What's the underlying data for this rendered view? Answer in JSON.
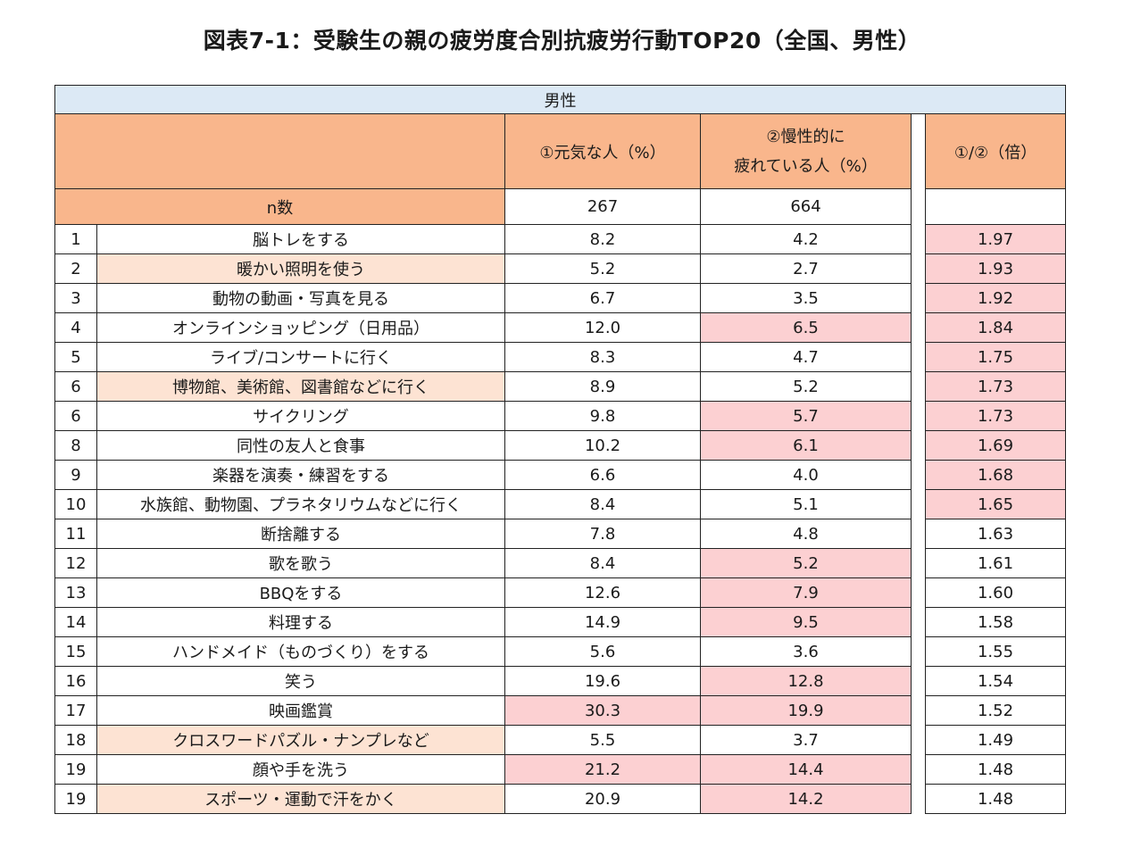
{
  "title": "図表7-1：受験生の親の疲労度合別抗疲労行動TOP20（全国、男性）",
  "table": {
    "band_label": "男性",
    "headers": {
      "col1": "①元気な人（%）",
      "col2_line1": "②慢性的に",
      "col2_line2": "疲れている人（%）",
      "ratio": "①/②（倍）"
    },
    "n_row": {
      "label": "n数",
      "col1": "267",
      "col2": "664",
      "ratio": ""
    },
    "rows": [
      {
        "rank": "1",
        "item": "脳トレをする",
        "v1": "8.2",
        "v2": "4.2",
        "ratio": "1.97"
      },
      {
        "rank": "2",
        "item": "暖かい照明を使う",
        "v1": "5.2",
        "v2": "2.7",
        "ratio": "1.93"
      },
      {
        "rank": "3",
        "item": "動物の動画・写真を見る",
        "v1": "6.7",
        "v2": "3.5",
        "ratio": "1.92"
      },
      {
        "rank": "4",
        "item": "オンラインショッピング（日用品）",
        "v1": "12.0",
        "v2": "6.5",
        "ratio": "1.84"
      },
      {
        "rank": "5",
        "item": "ライブ/コンサートに行く",
        "v1": "8.3",
        "v2": "4.7",
        "ratio": "1.75"
      },
      {
        "rank": "6",
        "item": "博物館、美術館、図書館などに行く",
        "v1": "8.9",
        "v2": "5.2",
        "ratio": "1.73"
      },
      {
        "rank": "6",
        "item": "サイクリング",
        "v1": "9.8",
        "v2": "5.7",
        "ratio": "1.73"
      },
      {
        "rank": "8",
        "item": "同性の友人と食事",
        "v1": "10.2",
        "v2": "6.1",
        "ratio": "1.69"
      },
      {
        "rank": "9",
        "item": "楽器を演奏・練習をする",
        "v1": "6.6",
        "v2": "4.0",
        "ratio": "1.68"
      },
      {
        "rank": "10",
        "item": "水族館、動物園、プラネタリウムなどに行く",
        "v1": "8.4",
        "v2": "5.1",
        "ratio": "1.65"
      },
      {
        "rank": "11",
        "item": "断捨離する",
        "v1": "7.8",
        "v2": "4.8",
        "ratio": "1.63"
      },
      {
        "rank": "12",
        "item": "歌を歌う",
        "v1": "8.4",
        "v2": "5.2",
        "ratio": "1.61"
      },
      {
        "rank": "13",
        "item": "BBQをする",
        "v1": "12.6",
        "v2": "7.9",
        "ratio": "1.60"
      },
      {
        "rank": "14",
        "item": "料理する",
        "v1": "14.9",
        "v2": "9.5",
        "ratio": "1.58"
      },
      {
        "rank": "15",
        "item": "ハンドメイド（ものづくり）をする",
        "v1": "5.6",
        "v2": "3.6",
        "ratio": "1.55"
      },
      {
        "rank": "16",
        "item": "笑う",
        "v1": "19.6",
        "v2": "12.8",
        "ratio": "1.54"
      },
      {
        "rank": "17",
        "item": "映画鑑賞",
        "v1": "30.3",
        "v2": "19.9",
        "ratio": "1.52"
      },
      {
        "rank": "18",
        "item": "クロスワードパズル・ナンプレなど",
        "v1": "5.5",
        "v2": "3.7",
        "ratio": "1.49"
      },
      {
        "rank": "19",
        "item": "顔や手を洗う",
        "v1": "21.2",
        "v2": "14.4",
        "ratio": "1.48"
      },
      {
        "rank": "19",
        "item": "スポーツ・運動で汗をかく",
        "v1": "20.9",
        "v2": "14.2",
        "ratio": "1.48"
      }
    ],
    "highlights": {
      "item_rows": [
        1,
        5,
        17,
        19
      ],
      "v1_rows": [
        16,
        18
      ],
      "v2_rows": [
        3,
        6,
        7,
        11,
        12,
        13,
        15,
        16,
        18,
        19
      ],
      "ratio_rows": [
        0,
        1,
        2,
        3,
        4,
        5,
        6,
        7,
        8,
        9
      ]
    },
    "colors": {
      "band": "#dce9f5",
      "header": "#f9b68c",
      "item_highlight": "#fde3d3",
      "value_highlight": "#fcd0d2"
    }
  }
}
